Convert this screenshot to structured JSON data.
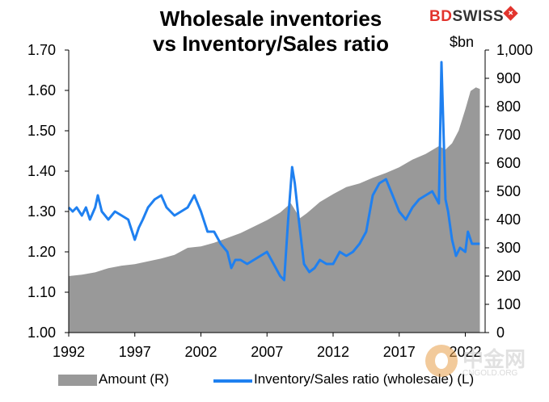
{
  "title_line1": "Wholesale inventories",
  "title_line2": "vs Inventory/Sales ratio",
  "brand": {
    "bd": "BD",
    "swiss": "SWISS",
    "cross": "+"
  },
  "unit_right": "$bn",
  "legend": {
    "area": "Amount (R)",
    "line": "Inventory/Sales ratio (wholesale) (L)"
  },
  "watermark": {
    "text": "中金网",
    "url": "CNGOLD.ORG"
  },
  "colors": {
    "area": "#999999",
    "line": "#1f80f0",
    "axis": "#000000"
  },
  "chart_data": {
    "type": "line",
    "x_ticks": [
      "1992",
      "1997",
      "2002",
      "2007",
      "2012",
      "2017",
      "2022"
    ],
    "xlim": [
      1992,
      2023.5
    ],
    "left_axis": {
      "ylim": [
        1.0,
        1.7
      ],
      "ticks": [
        "1.00",
        "1.10",
        "1.20",
        "1.30",
        "1.40",
        "1.50",
        "1.60",
        "1.70"
      ]
    },
    "right_axis": {
      "ylim": [
        0,
        1000
      ],
      "ticks": [
        "0",
        "100",
        "200",
        "300",
        "400",
        "500",
        "600",
        "700",
        "800",
        "900",
        "1,000"
      ]
    },
    "grid": false,
    "legend_position": "bottom",
    "series": [
      {
        "name": "Amount (R)",
        "type": "area",
        "axis": "right",
        "x": [
          1992,
          1993,
          1994,
          1995,
          1996,
          1997,
          1998,
          1999,
          2000,
          2001,
          2002,
          2003,
          2004,
          2005,
          2006,
          2007,
          2008,
          2008.8,
          2009.5,
          2010,
          2011,
          2012,
          2013,
          2014,
          2015,
          2016,
          2017,
          2018,
          2019,
          2020,
          2020.5,
          2021,
          2021.5,
          2022,
          2022.4,
          2022.8,
          2023.1
        ],
        "values": [
          200,
          205,
          213,
          228,
          237,
          242,
          252,
          262,
          275,
          300,
          305,
          318,
          335,
          352,
          375,
          398,
          425,
          458,
          405,
          422,
          462,
          490,
          515,
          528,
          548,
          565,
          585,
          612,
          632,
          660,
          648,
          670,
          715,
          790,
          855,
          868,
          862
        ]
      },
      {
        "name": "Inventory/Sales ratio (wholesale) (L)",
        "type": "line",
        "axis": "left",
        "x": [
          1992,
          1992.3,
          1992.6,
          1993,
          1993.3,
          1993.6,
          1994,
          1994.2,
          1994.5,
          1995,
          1995.5,
          1996,
          1996.5,
          1997,
          1997.3,
          1997.6,
          1998,
          1998.5,
          1999,
          1999.4,
          2000,
          2000.5,
          2001,
          2001.5,
          2002,
          2002.5,
          2003,
          2003.5,
          2004,
          2004.3,
          2004.6,
          2005,
          2005.5,
          2006,
          2006.5,
          2007,
          2007.5,
          2008,
          2008.3,
          2008.6,
          2008.9,
          2009.1,
          2009.4,
          2009.8,
          2010.2,
          2010.6,
          2011,
          2011.5,
          2012,
          2012.5,
          2013,
          2013.5,
          2014,
          2014.5,
          2015,
          2015.5,
          2016,
          2016.5,
          2017,
          2017.5,
          2018,
          2018.5,
          2019,
          2019.5,
          2020,
          2020.2,
          2020.35,
          2020.5,
          2020.7,
          2021,
          2021.3,
          2021.6,
          2022,
          2022.2,
          2022.5,
          2022.8,
          2023.1
        ],
        "values": [
          1.31,
          1.3,
          1.31,
          1.29,
          1.31,
          1.28,
          1.31,
          1.34,
          1.3,
          1.28,
          1.3,
          1.29,
          1.28,
          1.23,
          1.26,
          1.28,
          1.31,
          1.33,
          1.34,
          1.31,
          1.29,
          1.3,
          1.31,
          1.34,
          1.3,
          1.25,
          1.25,
          1.22,
          1.2,
          1.16,
          1.18,
          1.18,
          1.17,
          1.18,
          1.19,
          1.2,
          1.17,
          1.14,
          1.13,
          1.28,
          1.41,
          1.37,
          1.28,
          1.17,
          1.15,
          1.16,
          1.18,
          1.17,
          1.17,
          1.2,
          1.19,
          1.2,
          1.22,
          1.25,
          1.34,
          1.37,
          1.38,
          1.34,
          1.3,
          1.28,
          1.31,
          1.33,
          1.34,
          1.35,
          1.32,
          1.67,
          1.5,
          1.33,
          1.3,
          1.23,
          1.19,
          1.21,
          1.2,
          1.25,
          1.22,
          1.22,
          1.22
        ]
      }
    ]
  }
}
